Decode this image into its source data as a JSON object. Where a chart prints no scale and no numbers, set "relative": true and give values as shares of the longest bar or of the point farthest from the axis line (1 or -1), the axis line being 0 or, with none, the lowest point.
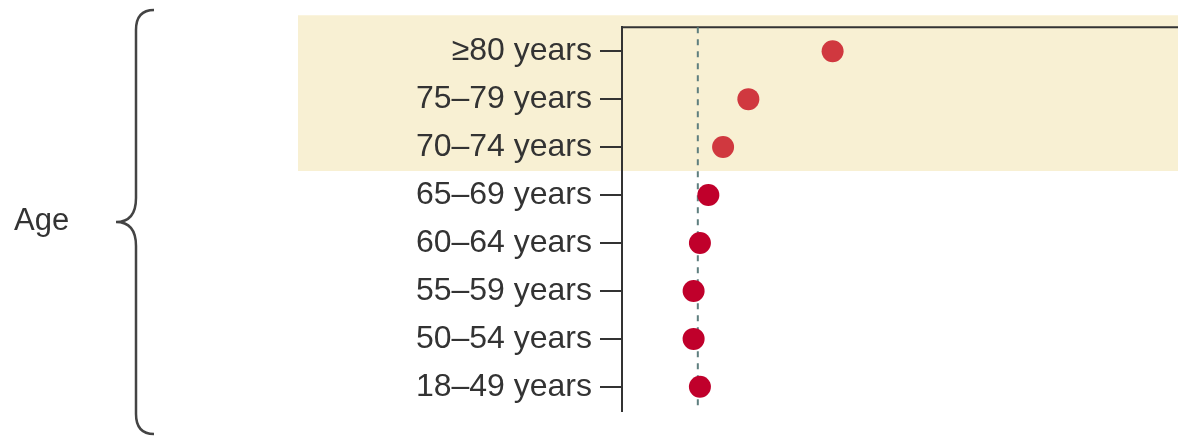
{
  "chart_data": {
    "type": "scatter",
    "annotations": [
      "Age"
    ],
    "orientation": "horizontal",
    "relative": true,
    "marker": "circle",
    "grid": false,
    "legend": false,
    "categories": [
      "≥80 years",
      "75–79 years",
      "70–74 years",
      "65–69 years",
      "60–64 years",
      "55–59 years",
      "50–54 years",
      "18–49 years"
    ],
    "values": [
      1,
      0.6,
      0.48,
      0.41,
      0.37,
      0.34,
      0.34,
      0.37
    ],
    "colors": [
      "#d0383f",
      "#d0383f",
      "#d0383f",
      "#c0002b",
      "#c0002b",
      "#c0002b",
      "#c0002b",
      "#c0002b"
    ],
    "bands": [
      {
        "axis": "y",
        "from": "≥80 years",
        "to": "70–74 years",
        "color": "#f8f0d3"
      }
    ],
    "ref_lines": [
      {
        "axis": "x",
        "value": 0.36,
        "line_style": "dashed",
        "color": "#5f7f7f"
      }
    ]
  }
}
